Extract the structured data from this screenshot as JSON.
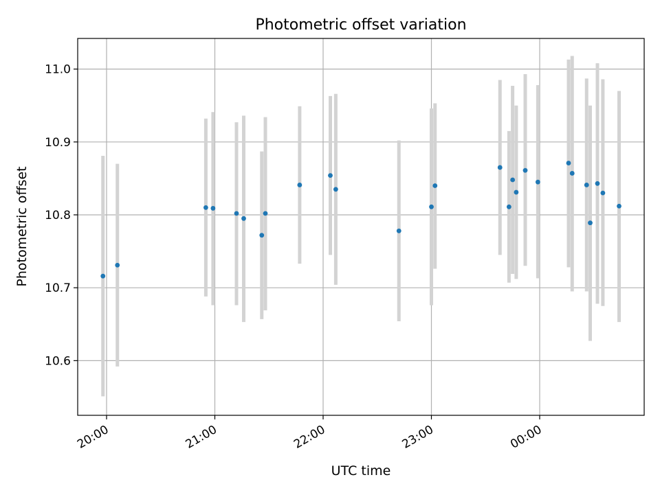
{
  "chart_data": {
    "type": "scatter",
    "title": "Photometric offset variation",
    "xlabel": "UTC time",
    "ylabel": "Photometric offset",
    "x_ticks": [
      "20:00",
      "21:00",
      "22:00",
      "23:00",
      "00:00"
    ],
    "y_ticks": [
      "10.6",
      "10.7",
      "10.8",
      "10.9",
      "11.0"
    ],
    "y_tick_values": [
      10.6,
      10.7,
      10.8,
      10.9,
      11.0
    ],
    "ylim": [
      10.525,
      11.042
    ],
    "grid": true,
    "colors": {
      "point": "#1f77b4",
      "errorbar": "#d3d3d3",
      "grid": "#b0b0b0"
    },
    "series": [
      {
        "points": [
          {
            "x": "19:58",
            "y": 10.716,
            "err_low": 10.551,
            "err_high": 10.881
          },
          {
            "x": "20:06",
            "y": 10.731,
            "err_low": 10.592,
            "err_high": 10.87
          },
          {
            "x": "20:55",
            "y": 10.81,
            "err_low": 10.688,
            "err_high": 10.932
          },
          {
            "x": "20:59",
            "y": 10.809,
            "err_low": 10.676,
            "err_high": 10.941
          },
          {
            "x": "21:12",
            "y": 10.802,
            "err_low": 10.676,
            "err_high": 10.927
          },
          {
            "x": "21:16",
            "y": 10.795,
            "err_low": 10.653,
            "err_high": 10.936
          },
          {
            "x": "21:26",
            "y": 10.772,
            "err_low": 10.657,
            "err_high": 10.887
          },
          {
            "x": "21:28",
            "y": 10.802,
            "err_low": 10.669,
            "err_high": 10.934
          },
          {
            "x": "21:47",
            "y": 10.841,
            "err_low": 10.733,
            "err_high": 10.949
          },
          {
            "x": "22:04",
            "y": 10.854,
            "err_low": 10.745,
            "err_high": 10.963
          },
          {
            "x": "22:07",
            "y": 10.835,
            "err_low": 10.704,
            "err_high": 10.966
          },
          {
            "x": "22:42",
            "y": 10.778,
            "err_low": 10.654,
            "err_high": 10.902
          },
          {
            "x": "23:00",
            "y": 10.811,
            "err_low": 10.676,
            "err_high": 10.946
          },
          {
            "x": "23:02",
            "y": 10.84,
            "err_low": 10.726,
            "err_high": 10.953
          },
          {
            "x": "23:38",
            "y": 10.865,
            "err_low": 10.745,
            "err_high": 10.985
          },
          {
            "x": "23:43",
            "y": 10.811,
            "err_low": 10.707,
            "err_high": 10.915
          },
          {
            "x": "23:45",
            "y": 10.848,
            "err_low": 10.719,
            "err_high": 10.977
          },
          {
            "x": "23:47",
            "y": 10.831,
            "err_low": 10.712,
            "err_high": 10.95
          },
          {
            "x": "23:52",
            "y": 10.861,
            "err_low": 10.73,
            "err_high": 10.993
          },
          {
            "x": "23:59",
            "y": 10.845,
            "err_low": 10.713,
            "err_high": 10.978
          },
          {
            "x": "00:16",
            "y": 10.871,
            "err_low": 10.728,
            "err_high": 11.013
          },
          {
            "x": "00:18",
            "y": 10.857,
            "err_low": 10.695,
            "err_high": 11.018
          },
          {
            "x": "00:26",
            "y": 10.841,
            "err_low": 10.695,
            "err_high": 10.987
          },
          {
            "x": "00:28",
            "y": 10.789,
            "err_low": 10.627,
            "err_high": 10.95
          },
          {
            "x": "00:32",
            "y": 10.843,
            "err_low": 10.678,
            "err_high": 11.008
          },
          {
            "x": "00:35",
            "y": 10.83,
            "err_low": 10.675,
            "err_high": 10.986
          },
          {
            "x": "00:44",
            "y": 10.812,
            "err_low": 10.653,
            "err_high": 10.97
          }
        ]
      }
    ]
  }
}
